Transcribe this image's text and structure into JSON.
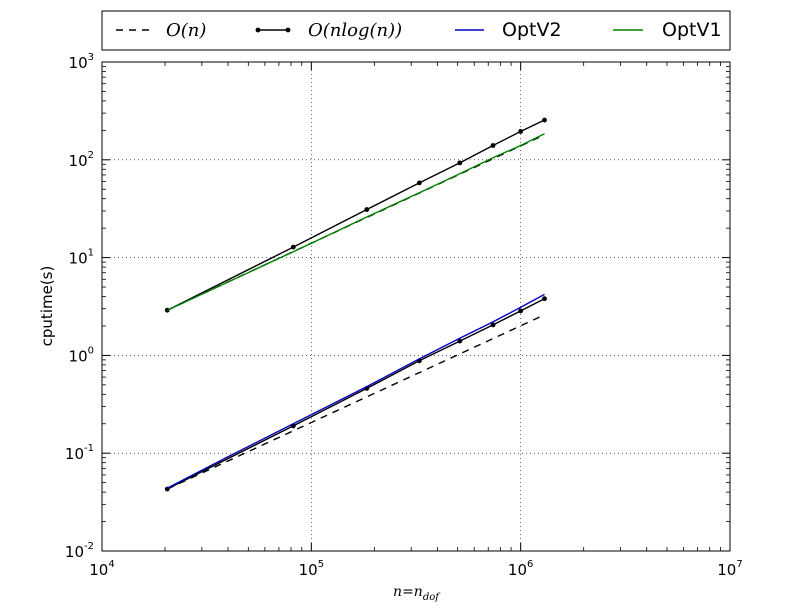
{
  "chart_data": {
    "type": "line",
    "xscale": "log",
    "yscale": "log",
    "xlim": [
      10000,
      10000000
    ],
    "ylim": [
      0.01,
      1000
    ],
    "grid": true,
    "legend_position": "top",
    "xlabel": {
      "main": "n",
      "eq": "=",
      "sub_base": "n",
      "sub": "dof"
    },
    "ylabel": "cputime(s)",
    "x_ticks": [
      {
        "base": "10",
        "exp": "4"
      },
      {
        "base": "10",
        "exp": "5"
      },
      {
        "base": "10",
        "exp": "6"
      },
      {
        "base": "10",
        "exp": "7"
      }
    ],
    "y_ticks": [
      {
        "base": "10",
        "exp": "-2"
      },
      {
        "base": "10",
        "exp": "-1"
      },
      {
        "base": "10",
        "exp": "0"
      },
      {
        "base": "10",
        "exp": "1"
      },
      {
        "base": "10",
        "exp": "2"
      },
      {
        "base": "10",
        "exp": "3"
      }
    ],
    "legend": [
      {
        "label": "O(n)",
        "style": "dashed",
        "color": "#000000",
        "markers": false
      },
      {
        "label": "O(nlog(n))",
        "style": "solid",
        "color": "#000000",
        "markers": true
      },
      {
        "label": "OptV2",
        "style": "solid",
        "color": "#0000bf",
        "markers": false
      },
      {
        "label": "OptV1",
        "style": "solid",
        "color": "#008000",
        "markers": false
      }
    ],
    "series": [
      {
        "name": "O(n)",
        "color": "#000000",
        "style": "dashed",
        "markers": false,
        "x": [
          20500,
          1300000
        ],
        "y": [
          0.043,
          2.6
        ]
      },
      {
        "name": "O(nlog(n))",
        "color": "#000000",
        "style": "solid",
        "markers": true,
        "x": [
          20500,
          82000,
          184000,
          328000,
          512000,
          738000,
          1000000,
          1300000
        ],
        "y": [
          0.043,
          0.19,
          0.46,
          0.88,
          1.4,
          2.05,
          2.85,
          3.8
        ]
      },
      {
        "name": "O(n)",
        "color": "#000000",
        "style": "dashed",
        "markers": false,
        "x": [
          20500,
          1300000
        ],
        "y": [
          2.9,
          180
        ]
      },
      {
        "name": "O(nlog(n))",
        "color": "#000000",
        "style": "solid",
        "markers": true,
        "x": [
          20500,
          82000,
          184000,
          328000,
          512000,
          738000,
          1000000,
          1300000
        ],
        "y": [
          2.9,
          12.8,
          31,
          58,
          93,
          140,
          195,
          255
        ]
      },
      {
        "name": "OptV2",
        "color": "#0000bf",
        "style": "solid",
        "markers": false,
        "x": [
          20500,
          40000,
          82000,
          184000,
          328000,
          512000,
          738000,
          1000000,
          1300000
        ],
        "y": [
          0.044,
          0.092,
          0.2,
          0.48,
          0.92,
          1.5,
          2.2,
          3.1,
          4.2
        ]
      },
      {
        "name": "OptV1",
        "color": "#008000",
        "style": "solid",
        "markers": false,
        "x": [
          20500,
          82000,
          184000,
          328000,
          512000,
          738000,
          1000000,
          1300000
        ],
        "y": [
          2.9,
          11.5,
          26,
          46,
          72,
          105,
          140,
          185
        ]
      }
    ]
  }
}
